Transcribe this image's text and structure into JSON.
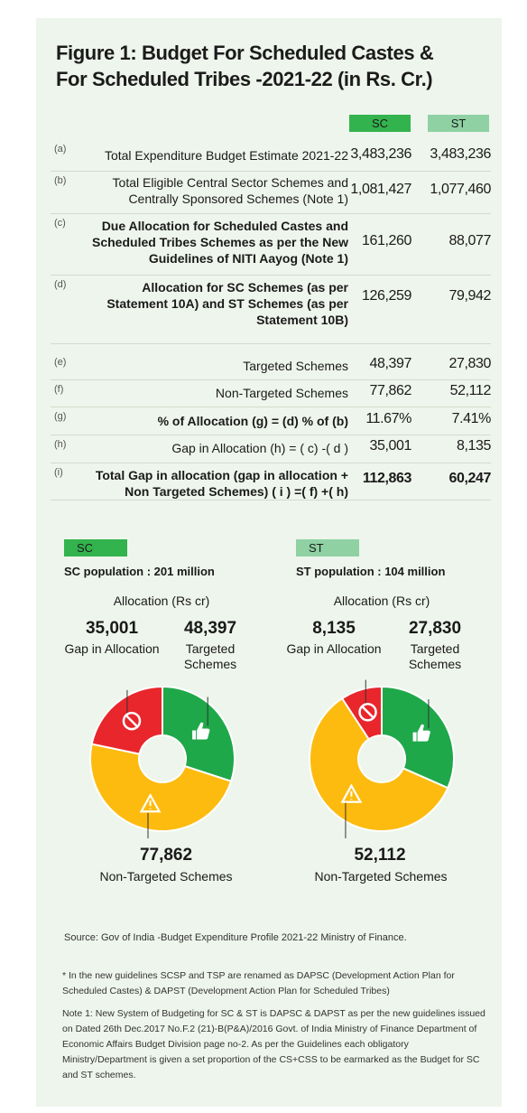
{
  "title": "Figure 1: Budget For Scheduled Castes  & For Scheduled Tribes -2021-22 (in Rs. Cr.)",
  "title_line1": "Figure 1: Budget For Scheduled Castes  &",
  "title_line2": "For Scheduled Tribes -2021-22 (in Rs. Cr.)",
  "columns": {
    "sc": "SC",
    "st": "ST"
  },
  "colors": {
    "sc_green": "#33b34d",
    "st_green": "#8fd1a3",
    "targeted": "#1fa84a",
    "non_targeted": "#fdbb0f",
    "gap": "#e8262b",
    "panel": "#eef5ec"
  },
  "table": [
    {
      "letter": "(a)",
      "label": "Total Expenditure Budget Estimate 2021-22",
      "sc": "3,483,236",
      "st": "3,483,236",
      "bold": false
    },
    {
      "letter": "(b)",
      "label": "Total Eligible Central Sector Schemes and Centrally Sponsored Schemes (Note 1)",
      "sc": "1,081,427",
      "st": "1,077,460",
      "bold": false
    },
    {
      "letter": "(c)",
      "label": "Due Allocation for Scheduled Castes  and Scheduled Tribes Schemes as per the New Guidelines of NITI Aayog  (Note 1)",
      "sc": "161,260",
      "st": "88,077",
      "bold": true
    },
    {
      "letter": "(d)",
      "label": "Allocation for SC Schemes (as per Statement 10A) and ST Schemes (as per Statement 10B)",
      "sc": "126,259",
      "st": "79,942",
      "bold": true
    },
    {
      "letter": "(e)",
      "label": "Targeted Schemes",
      "sc": "48,397",
      "st": "27,830",
      "bold": false
    },
    {
      "letter": "(f)",
      "label": "Non-Targeted Schemes",
      "sc": "77,862",
      "st": "52,112",
      "bold": false
    },
    {
      "letter": "(g)",
      "label": "% of Allocation (g) = (d) % of (b)",
      "sc": "11.67%",
      "st": "7.41%",
      "bold": true
    },
    {
      "letter": "(h)",
      "label": "Gap in Allocation (h) = ( c) -( d )",
      "sc": "35,001",
      "st": "8,135",
      "bold": false
    },
    {
      "letter": "(i)",
      "label": "Total Gap in allocation (gap in allocation + Non Targeted Schemes) ( i ) =( f) +( h)",
      "sc": "112,863",
      "st": "60,247",
      "bold": true
    }
  ],
  "sc_panel": {
    "badge": "SC",
    "population": "SC population : 201 million",
    "alloc_title": "Allocation (Rs cr)",
    "gap_value": "35,001",
    "gap_label": "Gap in Allocation",
    "targeted_value": "48,397",
    "targeted_label": "Targeted Schemes",
    "non_targeted_value": "77,862",
    "non_targeted_label": "Non-Targeted Schemes"
  },
  "st_panel": {
    "badge": "ST",
    "population": "ST population : 104 million",
    "alloc_title": "Allocation (Rs cr)",
    "gap_value": "8,135",
    "gap_label": "Gap in Allocation",
    "targeted_value": "27,830",
    "targeted_label": "Targeted Schemes",
    "non_targeted_value": "52,112",
    "non_targeted_label": "Non-Targeted Schemes"
  },
  "chart_data": [
    {
      "type": "pie",
      "categories": [
        "Targeted Schemes",
        "Non-Targeted Schemes",
        "Gap in Allocation"
      ],
      "values": [
        48397,
        77862,
        35001
      ],
      "title": "Allocation (Rs cr)"
    },
    {
      "type": "pie",
      "categories": [
        "Targeted Schemes",
        "Non-Targeted Schemes",
        "Gap in Allocation"
      ],
      "values": [
        27830,
        52112,
        8135
      ],
      "title": "Allocation (Rs cr)"
    }
  ],
  "source": "Source: Gov of India  -Budget Expenditure Profile 2021-22 Ministry of Finance.",
  "footnote1": "* In the new guidelines SCSP and TSP are renamed as  DAPSC (Development Action Plan for Scheduled Castes)  & DAPST (Development Action Plan for Scheduled Tribes)",
  "footnote2": "Note 1:  New System of Budgeting for SC & ST is DAPSC & DAPST as per the new guidelines issued on Dated 26th Dec.2017 No.F.2 (21)-B(P&A)/2016 Govt. of India Ministry of Finance Department of Economic Affairs Budget Division page no-2.  As per the Guidelines each obligatory  Ministry/Department is given a set proportion of the CS+CSS to be earmarked as the Budget for SC and ST schemes."
}
